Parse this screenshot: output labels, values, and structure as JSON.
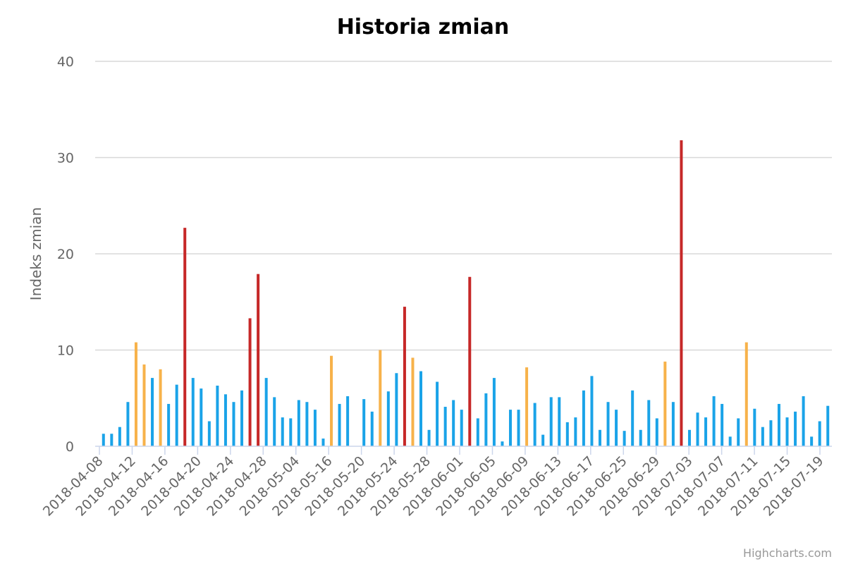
{
  "chart_data": {
    "type": "bar",
    "title": "Historia zmian",
    "ylabel": "Indeks zmian",
    "xlabel": "",
    "ylim": [
      0,
      40
    ],
    "yticks": [
      0,
      10,
      20,
      30,
      40
    ],
    "grid": true,
    "credit": "Highcharts.com",
    "x_tick_labels": [
      "2018-04-08",
      "2018-04-12",
      "2018-04-16",
      "2018-04-20",
      "2018-04-24",
      "2018-04-28",
      "2018-05-04",
      "2018-05-16",
      "2018-05-20",
      "2018-05-24",
      "2018-05-28",
      "2018-06-01",
      "2018-06-05",
      "2018-06-09",
      "2018-06-13",
      "2018-06-17",
      "2018-06-25",
      "2018-06-29",
      "2018-07-03",
      "2018-07-07",
      "2018-07-11",
      "2018-07-15",
      "2018-07-19"
    ],
    "colors": {
      "normal": "#1aa3e8",
      "medium": "#f7b24a",
      "high": "#c62828"
    },
    "values": [
      1.3,
      1.3,
      2.0,
      4.6,
      10.8,
      8.5,
      7.1,
      8.0,
      4.4,
      6.4,
      22.7,
      7.1,
      6.0,
      2.6,
      6.3,
      5.4,
      4.6,
      5.8,
      13.3,
      17.9,
      7.1,
      5.1,
      3.0,
      2.9,
      4.8,
      4.6,
      3.8,
      0.8,
      9.4,
      4.4,
      5.2,
      0.0,
      4.9,
      3.6,
      10.0,
      5.7,
      7.6,
      14.5,
      9.2,
      7.8,
      1.7,
      6.7,
      4.1,
      4.8,
      3.8,
      17.6,
      2.9,
      5.5,
      7.1,
      0.5,
      3.8,
      3.8,
      8.2,
      4.5,
      1.2,
      5.1,
      5.1,
      2.5,
      3.0,
      5.8,
      7.3,
      1.7,
      4.6,
      3.8,
      1.6,
      5.8,
      1.7,
      4.8,
      2.9,
      8.8,
      4.6,
      31.8,
      1.7,
      3.5,
      3.0,
      5.2,
      4.4,
      1.0,
      2.9,
      10.8,
      3.9,
      2.0,
      2.7,
      4.4,
      3.0,
      3.6,
      5.2,
      1.0,
      2.6,
      4.2
    ],
    "levels": [
      "normal",
      "normal",
      "normal",
      "normal",
      "medium",
      "medium",
      "normal",
      "medium",
      "normal",
      "normal",
      "high",
      "normal",
      "normal",
      "normal",
      "normal",
      "normal",
      "normal",
      "normal",
      "high",
      "high",
      "normal",
      "normal",
      "normal",
      "normal",
      "normal",
      "normal",
      "normal",
      "normal",
      "medium",
      "normal",
      "normal",
      "normal",
      "normal",
      "normal",
      "medium",
      "normal",
      "normal",
      "high",
      "medium",
      "normal",
      "normal",
      "normal",
      "normal",
      "normal",
      "normal",
      "high",
      "normal",
      "normal",
      "normal",
      "normal",
      "normal",
      "normal",
      "medium",
      "normal",
      "normal",
      "normal",
      "normal",
      "normal",
      "normal",
      "normal",
      "normal",
      "normal",
      "normal",
      "normal",
      "normal",
      "normal",
      "normal",
      "normal",
      "normal",
      "medium",
      "normal",
      "high",
      "normal",
      "normal",
      "normal",
      "normal",
      "normal",
      "normal",
      "normal",
      "medium",
      "normal",
      "normal",
      "normal",
      "normal",
      "normal",
      "normal",
      "normal",
      "normal",
      "normal",
      "normal"
    ]
  }
}
